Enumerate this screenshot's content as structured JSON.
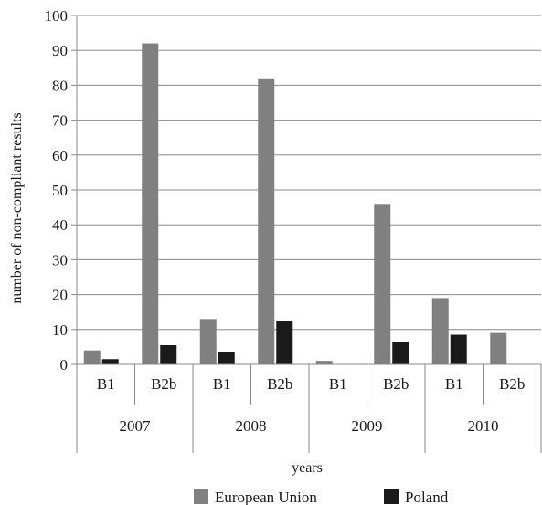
{
  "chart_data": {
    "type": "bar",
    "title": "",
    "xlabel": "years",
    "ylabel": "number of non-compliant results",
    "ylim": [
      0,
      100
    ],
    "yticks": [
      0,
      10,
      20,
      30,
      40,
      50,
      60,
      70,
      80,
      90,
      100
    ],
    "grid": true,
    "legend": "bottom",
    "groups": [
      {
        "year": "2007",
        "categories": [
          "B1",
          "B2b"
        ]
      },
      {
        "year": "2008",
        "categories": [
          "B1",
          "B2b"
        ]
      },
      {
        "year": "2009",
        "categories": [
          "B1",
          "B2b"
        ]
      },
      {
        "year": "2010",
        "categories": [
          "B1",
          "B2b"
        ]
      }
    ],
    "categories": [
      "B1",
      "B2b",
      "B1",
      "B2b",
      "B1",
      "B2b",
      "B1",
      "B2b"
    ],
    "series": [
      {
        "name": "European Union",
        "color": "#808080",
        "values": [
          4,
          92,
          13,
          82,
          1,
          46,
          19,
          9
        ]
      },
      {
        "name": "Poland",
        "color": "#1a1a1a",
        "values": [
          1.5,
          5.5,
          3.5,
          12.5,
          0,
          6.5,
          8.5,
          0
        ]
      }
    ]
  }
}
